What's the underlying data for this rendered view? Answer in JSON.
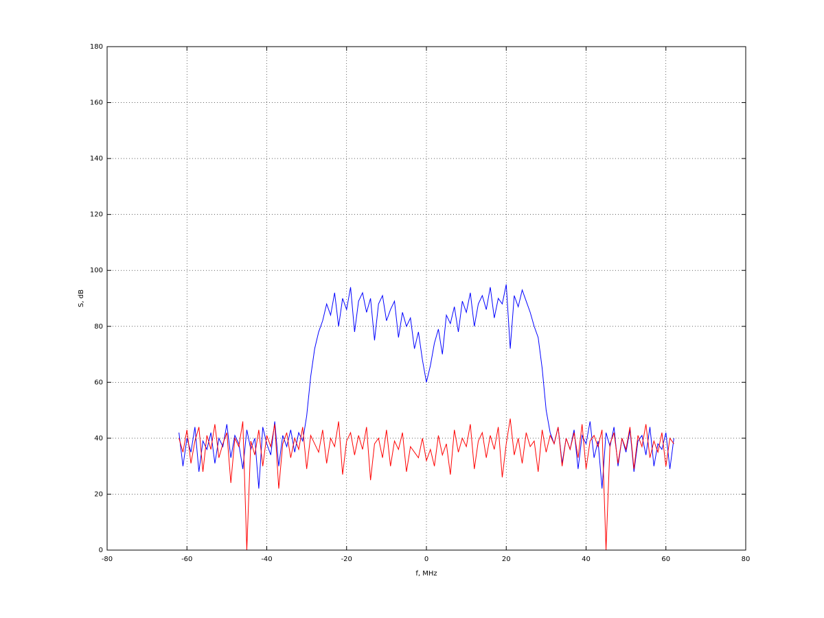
{
  "chart_data": {
    "type": "line",
    "xlabel": "f, MHz",
    "ylabel": "S, dB",
    "xlim": [
      -80,
      80
    ],
    "ylim": [
      0,
      180
    ],
    "xticks": [
      -80,
      -60,
      -40,
      -20,
      0,
      20,
      40,
      60,
      80
    ],
    "yticks": [
      0,
      20,
      40,
      60,
      80,
      100,
      120,
      140,
      160,
      180
    ],
    "grid": true,
    "x": [
      -62,
      -61,
      -60,
      -59,
      -58,
      -57,
      -56,
      -55,
      -54,
      -53,
      -52,
      -51,
      -50,
      -49,
      -48,
      -47,
      -46,
      -45,
      -44,
      -43,
      -42,
      -41,
      -40,
      -39,
      -38,
      -37,
      -36,
      -35,
      -34,
      -33,
      -32,
      -31,
      -30,
      -29,
      -28,
      -27,
      -26,
      -25,
      -24,
      -23,
      -22,
      -21,
      -20,
      -19,
      -18,
      -17,
      -16,
      -15,
      -14,
      -13,
      -12,
      -11,
      -10,
      -9,
      -8,
      -7,
      -6,
      -5,
      -4,
      -3,
      -2,
      -1,
      0,
      1,
      2,
      3,
      4,
      5,
      6,
      7,
      8,
      9,
      10,
      11,
      12,
      13,
      14,
      15,
      16,
      17,
      18,
      19,
      20,
      21,
      22,
      23,
      24,
      25,
      26,
      27,
      28,
      29,
      30,
      31,
      32,
      33,
      34,
      35,
      36,
      37,
      38,
      39,
      40,
      41,
      42,
      43,
      44,
      45,
      46,
      47,
      48,
      49,
      50,
      51,
      52,
      53,
      54,
      55,
      56,
      57,
      58,
      59,
      60,
      61,
      62
    ],
    "series": [
      {
        "color": "#0000ff",
        "values": [
          42,
          30,
          40,
          35,
          44,
          28,
          39,
          36,
          42,
          31,
          40,
          37,
          45,
          33,
          41,
          38,
          29,
          43,
          36,
          40,
          22,
          44,
          38,
          34,
          46,
          30,
          41,
          37,
          43,
          35,
          42,
          39,
          48,
          62,
          72,
          78,
          82,
          88,
          84,
          92,
          80,
          90,
          86,
          94,
          78,
          89,
          92,
          85,
          90,
          75,
          88,
          91,
          82,
          86,
          89,
          76,
          85,
          80,
          83,
          72,
          78,
          68,
          60,
          66,
          74,
          79,
          70,
          84,
          81,
          87,
          78,
          89,
          85,
          92,
          80,
          88,
          91,
          86,
          94,
          83,
          90,
          88,
          95,
          72,
          91,
          87,
          93,
          89,
          85,
          80,
          76,
          65,
          50,
          42,
          38,
          44,
          31,
          40,
          36,
          43,
          29,
          41,
          38,
          46,
          33,
          39,
          22,
          42,
          37,
          44,
          30,
          40,
          35,
          43,
          28,
          39,
          41,
          34,
          44,
          30,
          38,
          36,
          42,
          29,
          40
        ]
      },
      {
        "color": "#ff0000",
        "values": [
          40,
          35,
          43,
          31,
          39,
          44,
          28,
          41,
          36,
          45,
          33,
          38,
          42,
          24,
          40,
          37,
          46,
          0,
          39,
          34,
          43,
          30,
          41,
          37,
          45,
          22,
          38,
          42,
          33,
          40,
          36,
          44,
          29,
          41,
          38,
          35,
          43,
          31,
          40,
          37,
          46,
          27,
          39,
          42,
          34,
          41,
          36,
          44,
          25,
          38,
          40,
          33,
          43,
          30,
          39,
          36,
          42,
          28,
          37,
          35,
          33,
          40,
          32,
          36,
          30,
          41,
          34,
          38,
          27,
          43,
          35,
          40,
          37,
          45,
          29,
          39,
          42,
          33,
          41,
          36,
          44,
          26,
          38,
          47,
          34,
          40,
          31,
          42,
          37,
          39,
          28,
          43,
          35,
          41,
          38,
          44,
          30,
          40,
          36,
          42,
          33,
          45,
          29,
          39,
          41,
          37,
          43,
          0,
          38,
          42,
          31,
          40,
          36,
          44,
          29,
          41,
          37,
          45,
          33,
          39,
          35,
          42,
          30,
          40,
          38
        ]
      }
    ]
  }
}
